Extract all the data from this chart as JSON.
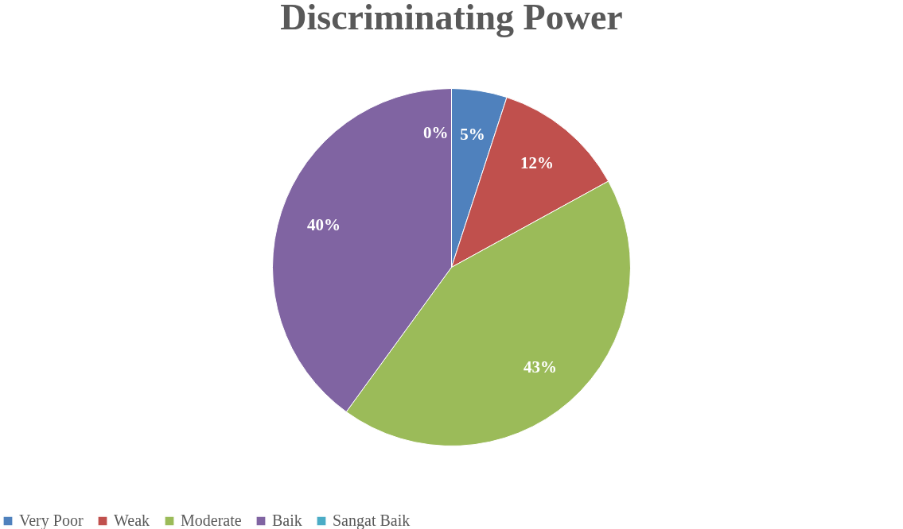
{
  "chart_data": {
    "type": "pie",
    "title": "Discriminating Power",
    "categories": [
      "Very Poor",
      "Weak",
      "Moderate",
      "Baik",
      "Sangat Baik"
    ],
    "values": [
      5,
      12,
      43,
      40,
      0
    ],
    "colors": [
      "#4f81bd",
      "#c0504d",
      "#9bbb59",
      "#8064a2",
      "#4bacc6"
    ],
    "value_labels": [
      "5%",
      "12%",
      "43%",
      "40%",
      "0%"
    ],
    "legend": "bottom"
  }
}
